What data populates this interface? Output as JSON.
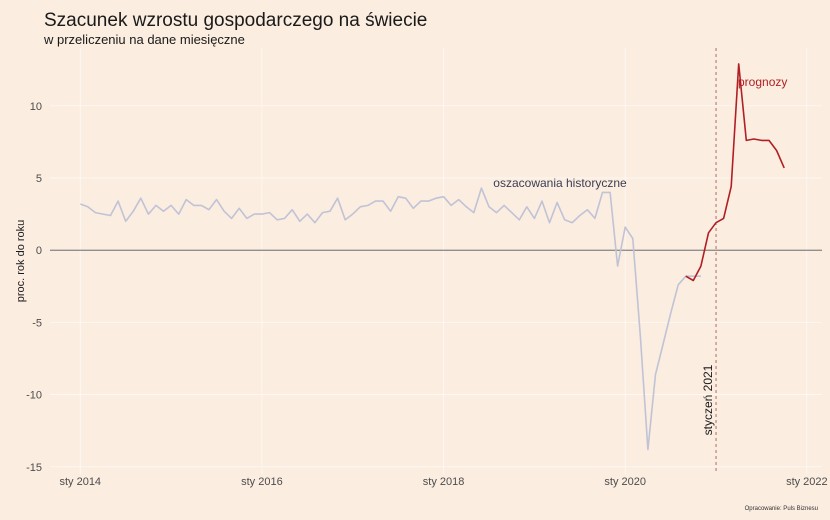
{
  "title": "Szacunek wzrostu gospodarczego na świecie",
  "subtitle": "w przeliczeniu na dane miesięczne",
  "caption": "Opracowanie: Puls Biznesu",
  "colors": {
    "background": "#fbede0",
    "historical": "#c0c3d6",
    "forecast": "#b11f24",
    "zero_line": "#555555",
    "grid": "#ffffff",
    "vline": "#b26b6b"
  },
  "chart_data": {
    "type": "line",
    "title": "Szacunek wzrostu gospodarczego na świecie",
    "subtitle": "w przeliczeniu na dane miesięczne",
    "xlabel": "",
    "ylabel": "proc. rok do roku",
    "x_ticks": [
      "2014-01",
      "2016-01",
      "2018-01",
      "2020-01",
      "2022-01"
    ],
    "x_tick_labels": [
      "sty 2014",
      "sty 2016",
      "sty 2018",
      "sty 2020",
      "sty 2022"
    ],
    "xlim": [
      "2013-09",
      "2022-03"
    ],
    "y_ticks": [
      -15,
      -10,
      -5,
      0,
      5,
      10
    ],
    "y_tick_labels": [
      "-15",
      "-10",
      "-5",
      "0",
      "5",
      "10"
    ],
    "ylim": [
      -15.5,
      14
    ],
    "grid": true,
    "reference_line": {
      "y": 0
    },
    "annotations": {
      "historical_label": "oszacowania historyczne",
      "forecast_label": "prognozy",
      "vline_label": "styczeń 2021",
      "vline_date": "2021-01"
    },
    "series": [
      {
        "name": "oszacowania historyczne",
        "x": [
          "2014-01",
          "2014-02",
          "2014-03",
          "2014-04",
          "2014-05",
          "2014-06",
          "2014-07",
          "2014-08",
          "2014-09",
          "2014-10",
          "2014-11",
          "2014-12",
          "2015-01",
          "2015-02",
          "2015-03",
          "2015-04",
          "2015-05",
          "2015-06",
          "2015-07",
          "2015-08",
          "2015-09",
          "2015-10",
          "2015-11",
          "2015-12",
          "2016-01",
          "2016-02",
          "2016-03",
          "2016-04",
          "2016-05",
          "2016-06",
          "2016-07",
          "2016-08",
          "2016-09",
          "2016-10",
          "2016-11",
          "2016-12",
          "2017-01",
          "2017-02",
          "2017-03",
          "2017-04",
          "2017-05",
          "2017-06",
          "2017-07",
          "2017-08",
          "2017-09",
          "2017-10",
          "2017-11",
          "2017-12",
          "2018-01",
          "2018-02",
          "2018-03",
          "2018-04",
          "2018-05",
          "2018-06",
          "2018-07",
          "2018-08",
          "2018-09",
          "2018-10",
          "2018-11",
          "2018-12",
          "2019-01",
          "2019-02",
          "2019-03",
          "2019-04",
          "2019-05",
          "2019-06",
          "2019-07",
          "2019-08",
          "2019-09",
          "2019-10",
          "2019-11",
          "2019-12",
          "2020-01",
          "2020-02",
          "2020-03",
          "2020-04",
          "2020-05",
          "2020-06",
          "2020-07",
          "2020-08",
          "2020-09",
          "2020-10",
          "2020-11"
        ],
        "values": [
          3.2,
          3.0,
          2.6,
          2.5,
          2.4,
          3.4,
          2.0,
          2.7,
          3.6,
          2.5,
          3.1,
          2.7,
          3.1,
          2.5,
          3.5,
          3.1,
          3.1,
          2.8,
          3.5,
          2.7,
          2.2,
          2.9,
          2.2,
          2.5,
          2.5,
          2.6,
          2.1,
          2.2,
          2.8,
          2.0,
          2.5,
          1.9,
          2.6,
          2.7,
          3.6,
          2.1,
          2.5,
          3.0,
          3.1,
          3.4,
          3.4,
          2.7,
          3.7,
          3.6,
          2.9,
          3.4,
          3.4,
          3.6,
          3.7,
          3.1,
          3.5,
          3.0,
          2.6,
          4.3,
          3.0,
          2.6,
          3.1,
          2.6,
          2.1,
          3.0,
          2.2,
          3.4,
          1.9,
          3.3,
          2.1,
          1.9,
          2.4,
          2.8,
          2.2,
          4.0,
          4.0,
          -1.1,
          1.6,
          0.8,
          -6.0,
          -13.8,
          -8.6,
          -6.5,
          -4.4,
          -2.4,
          -1.8,
          -1.8,
          -1.8
        ]
      },
      {
        "name": "prognozy",
        "x": [
          "2020-09",
          "2020-10",
          "2020-11",
          "2020-12",
          "2021-01",
          "2021-02",
          "2021-03",
          "2021-04",
          "2021-05",
          "2021-06",
          "2021-07",
          "2021-08",
          "2021-09",
          "2021-10",
          "2021-11"
        ],
        "values": [
          -1.8,
          -2.1,
          -1.1,
          1.2,
          1.9,
          2.2,
          4.4,
          12.9,
          7.6,
          7.7,
          7.6,
          7.6,
          6.9,
          5.7,
          null
        ]
      }
    ]
  }
}
